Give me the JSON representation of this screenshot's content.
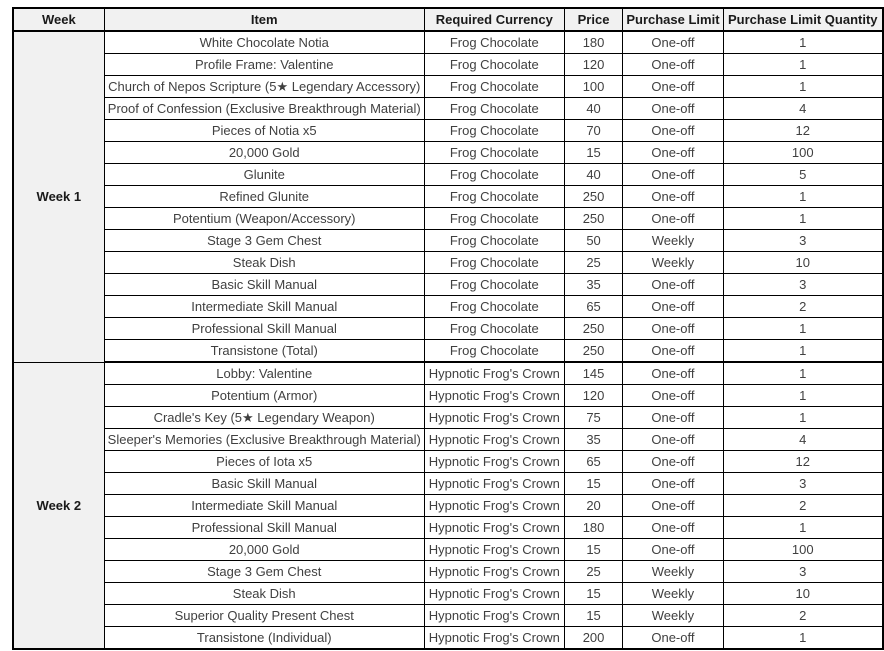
{
  "colors": {
    "header_bg": "#f1f1f1",
    "body_bg": "#ffffff",
    "border": "#000000",
    "header_text": "#1a1a1a",
    "body_text": "#404040"
  },
  "table": {
    "columns": [
      {
        "label": "Week"
      },
      {
        "label": "Item"
      },
      {
        "label": "Required Currency"
      },
      {
        "label": "Price"
      },
      {
        "label": "Purchase Limit"
      },
      {
        "label": "Purchase Limit Quantity"
      }
    ],
    "groups": [
      {
        "week_label": "Week 1",
        "rows": [
          {
            "item": "White Chocolate Notia",
            "currency": "Frog Chocolate",
            "price": "180",
            "limit": "One-off",
            "quantity": "1"
          },
          {
            "item": "Profile Frame: Valentine",
            "currency": "Frog Chocolate",
            "price": "120",
            "limit": "One-off",
            "quantity": "1"
          },
          {
            "item": "Church of Nepos Scripture (5★ Legendary Accessory)",
            "currency": "Frog Chocolate",
            "price": "100",
            "limit": "One-off",
            "quantity": "1"
          },
          {
            "item": "Proof of Confession (Exclusive Breakthrough Material)",
            "currency": "Frog Chocolate",
            "price": "40",
            "limit": "One-off",
            "quantity": "4"
          },
          {
            "item": "Pieces of Notia x5",
            "currency": "Frog Chocolate",
            "price": "70",
            "limit": "One-off",
            "quantity": "12"
          },
          {
            "item": "20,000 Gold",
            "currency": "Frog Chocolate",
            "price": "15",
            "limit": "One-off",
            "quantity": "100"
          },
          {
            "item": "Glunite",
            "currency": "Frog Chocolate",
            "price": "40",
            "limit": "One-off",
            "quantity": "5"
          },
          {
            "item": "Refined Glunite",
            "currency": "Frog Chocolate",
            "price": "250",
            "limit": "One-off",
            "quantity": "1"
          },
          {
            "item": "Potentium (Weapon/Accessory)",
            "currency": "Frog Chocolate",
            "price": "250",
            "limit": "One-off",
            "quantity": "1"
          },
          {
            "item": "Stage 3 Gem Chest",
            "currency": "Frog Chocolate",
            "price": "50",
            "limit": "Weekly",
            "quantity": "3"
          },
          {
            "item": "Steak Dish",
            "currency": "Frog Chocolate",
            "price": "25",
            "limit": "Weekly",
            "quantity": "10"
          },
          {
            "item": "Basic Skill Manual",
            "currency": "Frog Chocolate",
            "price": "35",
            "limit": "One-off",
            "quantity": "3"
          },
          {
            "item": "Intermediate Skill Manual",
            "currency": "Frog Chocolate",
            "price": "65",
            "limit": "One-off",
            "quantity": "2"
          },
          {
            "item": "Professional Skill Manual",
            "currency": "Frog Chocolate",
            "price": "250",
            "limit": "One-off",
            "quantity": "1"
          },
          {
            "item": "Transistone (Total)",
            "currency": "Frog Chocolate",
            "price": "250",
            "limit": "One-off",
            "quantity": "1"
          }
        ]
      },
      {
        "week_label": "Week 2",
        "rows": [
          {
            "item": "Lobby: Valentine",
            "currency": "Hypnotic Frog's Crown",
            "price": "145",
            "limit": "One-off",
            "quantity": "1"
          },
          {
            "item": "Potentium (Armor)",
            "currency": "Hypnotic Frog's Crown",
            "price": "120",
            "limit": "One-off",
            "quantity": "1"
          },
          {
            "item": "Cradle's Key (5★ Legendary Weapon)",
            "currency": "Hypnotic Frog's Crown",
            "price": "75",
            "limit": "One-off",
            "quantity": "1"
          },
          {
            "item": "Sleeper's Memories (Exclusive Breakthrough Material)",
            "currency": "Hypnotic Frog's Crown",
            "price": "35",
            "limit": "One-off",
            "quantity": "4"
          },
          {
            "item": "Pieces of Iota x5",
            "currency": "Hypnotic Frog's Crown",
            "price": "65",
            "limit": "One-off",
            "quantity": "12"
          },
          {
            "item": "Basic Skill Manual",
            "currency": "Hypnotic Frog's Crown",
            "price": "15",
            "limit": "One-off",
            "quantity": "3"
          },
          {
            "item": "Intermediate Skill Manual",
            "currency": "Hypnotic Frog's Crown",
            "price": "20",
            "limit": "One-off",
            "quantity": "2"
          },
          {
            "item": "Professional Skill Manual",
            "currency": "Hypnotic Frog's Crown",
            "price": "180",
            "limit": "One-off",
            "quantity": "1"
          },
          {
            "item": "20,000 Gold",
            "currency": "Hypnotic Frog's Crown",
            "price": "15",
            "limit": "One-off",
            "quantity": "100"
          },
          {
            "item": "Stage 3 Gem Chest",
            "currency": "Hypnotic Frog's Crown",
            "price": "25",
            "limit": "Weekly",
            "quantity": "3"
          },
          {
            "item": "Steak Dish",
            "currency": "Hypnotic Frog's Crown",
            "price": "15",
            "limit": "Weekly",
            "quantity": "10"
          },
          {
            "item": "Superior Quality Present Chest",
            "currency": "Hypnotic Frog's Crown",
            "price": "15",
            "limit": "Weekly",
            "quantity": "2"
          },
          {
            "item": "Transistone (Individual)",
            "currency": "Hypnotic Frog's Crown",
            "price": "200",
            "limit": "One-off",
            "quantity": "1"
          }
        ]
      }
    ]
  }
}
